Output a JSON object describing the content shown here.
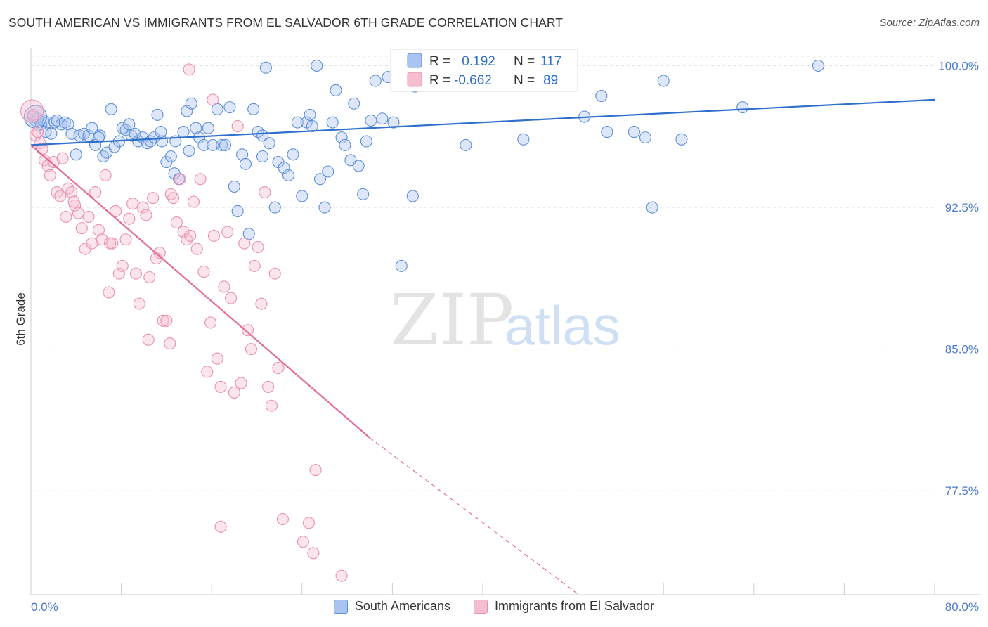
{
  "title": "SOUTH AMERICAN VS IMMIGRANTS FROM EL SALVADOR 6TH GRADE CORRELATION CHART",
  "source": "Source: ZipAtlas.com",
  "watermark": {
    "zip": "ZIP",
    "atlas": "atlas"
  },
  "colors": {
    "blue": "#5b8fd8",
    "blue_fill": "#a9c4f0",
    "blue_line": "#2f6fcc",
    "pink": "#e98fb1",
    "pink_fill": "#f5bdd2",
    "pink_line": "#e56a96",
    "tick_text": "#4a7bd0"
  },
  "legend_top": {
    "blue": {
      "r_label": "R =",
      "r_value": " 0.192",
      "n_label": "N =",
      "n_value": "117"
    },
    "pink": {
      "r_label": "R =",
      "r_value": "-0.662",
      "n_label": "N =",
      "n_value": "89"
    }
  },
  "chart_data": {
    "type": "scatter",
    "title": "SOUTH AMERICAN VS IMMIGRANTS FROM EL SALVADOR 6TH GRADE CORRELATION CHART",
    "xlabel": "",
    "ylabel": "6th Grade",
    "xlim": [
      0,
      80
    ],
    "ylim": [
      72,
      100.8
    ],
    "x_tick_labels": [
      "0.0%",
      "80.0%"
    ],
    "y_ticks": [
      100.0,
      92.5,
      85.0,
      77.5
    ],
    "y_tick_labels": [
      "100.0%",
      "92.5%",
      "85.0%",
      "77.5%"
    ],
    "grid": true,
    "legend_position": "bottom",
    "series": [
      {
        "name": "South Americans",
        "color": "#5b8fd8",
        "trend": {
          "x": [
            0,
            80
          ],
          "y": [
            95.8,
            98.2
          ]
        },
        "points": [
          [
            0.2,
            97.3
          ],
          [
            0.4,
            97.1
          ],
          [
            0.6,
            97.2
          ],
          [
            0.9,
            96.9
          ],
          [
            1.1,
            97.1
          ],
          [
            1.3,
            96.5
          ],
          [
            1.5,
            97.0
          ],
          [
            1.8,
            96.4
          ],
          [
            2.1,
            97.0
          ],
          [
            2.3,
            97.1
          ],
          [
            2.7,
            96.9
          ],
          [
            3.0,
            97.0
          ],
          [
            3.3,
            96.9
          ],
          [
            3.6,
            96.4
          ],
          [
            4.0,
            95.3
          ],
          [
            4.3,
            96.3
          ],
          [
            4.7,
            96.4
          ],
          [
            5.1,
            96.3
          ],
          [
            5.4,
            96.7
          ],
          [
            5.7,
            95.8
          ],
          [
            6.1,
            96.3
          ],
          [
            6.4,
            95.2
          ],
          [
            6.7,
            95.4
          ],
          [
            7.1,
            97.7
          ],
          [
            7.4,
            95.7
          ],
          [
            7.8,
            96.0
          ],
          [
            8.1,
            96.7
          ],
          [
            8.4,
            96.6
          ],
          [
            8.9,
            96.3
          ],
          [
            9.2,
            96.4
          ],
          [
            9.5,
            96.0
          ],
          [
            9.9,
            96.2
          ],
          [
            10.3,
            95.9
          ],
          [
            10.6,
            96.0
          ],
          [
            10.9,
            96.2
          ],
          [
            11.2,
            97.4
          ],
          [
            11.6,
            96.0
          ],
          [
            12.0,
            94.9
          ],
          [
            12.4,
            95.2
          ],
          [
            12.7,
            94.3
          ],
          [
            13.1,
            94.0
          ],
          [
            13.5,
            96.5
          ],
          [
            13.8,
            97.6
          ],
          [
            14.2,
            98.0
          ],
          [
            14.6,
            96.7
          ],
          [
            14.9,
            96.2
          ],
          [
            15.3,
            95.8
          ],
          [
            15.7,
            96.7
          ],
          [
            16.1,
            95.8
          ],
          [
            16.5,
            97.7
          ],
          [
            16.9,
            95.8
          ],
          [
            17.2,
            95.8
          ],
          [
            17.6,
            97.8
          ],
          [
            18.0,
            93.6
          ],
          [
            18.3,
            92.3
          ],
          [
            18.7,
            95.3
          ],
          [
            19.0,
            94.8
          ],
          [
            19.3,
            91.1
          ],
          [
            19.7,
            97.7
          ],
          [
            20.1,
            96.5
          ],
          [
            20.5,
            96.3
          ],
          [
            20.8,
            99.9
          ],
          [
            21.1,
            95.9
          ],
          [
            21.6,
            92.5
          ],
          [
            21.9,
            94.9
          ],
          [
            22.4,
            94.6
          ],
          [
            22.8,
            94.2
          ],
          [
            23.2,
            95.3
          ],
          [
            23.6,
            97.0
          ],
          [
            24.0,
            93.1
          ],
          [
            24.4,
            97.0
          ],
          [
            24.7,
            97.4
          ],
          [
            24.9,
            96.8
          ],
          [
            25.3,
            100.0
          ],
          [
            25.6,
            94.0
          ],
          [
            26.0,
            92.5
          ],
          [
            26.3,
            94.4
          ],
          [
            26.7,
            97.0
          ],
          [
            27.0,
            98.7
          ],
          [
            27.5,
            96.2
          ],
          [
            27.8,
            95.8
          ],
          [
            28.3,
            95.0
          ],
          [
            28.6,
            98.0
          ],
          [
            29.0,
            94.7
          ],
          [
            29.4,
            93.2
          ],
          [
            29.7,
            96.0
          ],
          [
            30.1,
            97.1
          ],
          [
            30.5,
            99.2
          ],
          [
            31.1,
            97.2
          ],
          [
            31.6,
            99.4
          ],
          [
            32.1,
            97.0
          ],
          [
            32.6,
            99.9
          ],
          [
            33.1,
            100.0
          ],
          [
            33.8,
            93.1
          ],
          [
            34.0,
            98.9
          ],
          [
            34.6,
            99.4
          ],
          [
            35.4,
            100.0
          ],
          [
            36.1,
            100.0
          ],
          [
            37.0,
            99.6
          ],
          [
            38.2,
            100.0
          ],
          [
            39.0,
            99.1
          ],
          [
            40.0,
            99.5
          ],
          [
            41.3,
            99.6
          ],
          [
            42.5,
            100.0
          ],
          [
            44.0,
            99.2
          ],
          [
            45.1,
            99.0
          ],
          [
            46.5,
            99.4
          ],
          [
            47.8,
            100.0
          ],
          [
            53.4,
            96.5
          ],
          [
            55.0,
            92.5
          ],
          [
            49.0,
            97.3
          ],
          [
            50.5,
            98.4
          ],
          [
            51.0,
            96.5
          ],
          [
            54.4,
            96.2
          ],
          [
            56.0,
            99.2
          ],
          [
            63.0,
            97.8
          ],
          [
            69.7,
            100.0
          ],
          [
            32.8,
            89.4
          ],
          [
            38.5,
            95.8
          ],
          [
            43.6,
            96.1
          ],
          [
            57.6,
            96.1
          ],
          [
            20.5,
            95.2
          ],
          [
            14.0,
            95.5
          ],
          [
            11.5,
            96.5
          ],
          [
            8.7,
            96.9
          ],
          [
            6.0,
            96.2
          ],
          [
            12.8,
            96.0
          ]
        ]
      },
      {
        "name": "Immigrants from El Salvador",
        "color": "#e98fb1",
        "trend": {
          "x": [
            0,
            30
          ],
          "y": [
            95.8,
            80.3
          ]
        },
        "trend_dashed": {
          "x": [
            30,
            48.5
          ],
          "y": [
            80.3,
            72.0
          ]
        },
        "points": [
          [
            0.2,
            97.4
          ],
          [
            0.4,
            96.3
          ],
          [
            0.6,
            96.5
          ],
          [
            0.8,
            95.9
          ],
          [
            1.0,
            95.6
          ],
          [
            1.2,
            95.0
          ],
          [
            1.5,
            94.7
          ],
          [
            1.7,
            94.2
          ],
          [
            2.0,
            94.9
          ],
          [
            2.3,
            93.3
          ],
          [
            2.6,
            93.1
          ],
          [
            2.8,
            95.1
          ],
          [
            3.1,
            92.0
          ],
          [
            3.3,
            93.5
          ],
          [
            3.6,
            93.3
          ],
          [
            3.9,
            92.6
          ],
          [
            4.2,
            92.2
          ],
          [
            4.5,
            91.4
          ],
          [
            4.8,
            90.3
          ],
          [
            5.1,
            92.0
          ],
          [
            5.4,
            90.6
          ],
          [
            5.7,
            93.3
          ],
          [
            6.0,
            91.3
          ],
          [
            6.3,
            90.8
          ],
          [
            6.6,
            94.2
          ],
          [
            6.9,
            88.0
          ],
          [
            7.2,
            90.6
          ],
          [
            7.5,
            92.3
          ],
          [
            7.8,
            89.0
          ],
          [
            8.1,
            89.4
          ],
          [
            8.4,
            90.8
          ],
          [
            8.7,
            91.9
          ],
          [
            9.0,
            92.7
          ],
          [
            9.3,
            89.0
          ],
          [
            9.6,
            87.4
          ],
          [
            9.9,
            92.5
          ],
          [
            10.2,
            92.1
          ],
          [
            10.5,
            88.8
          ],
          [
            10.8,
            93.0
          ],
          [
            11.1,
            89.8
          ],
          [
            11.4,
            90.1
          ],
          [
            11.7,
            86.5
          ],
          [
            12.0,
            86.5
          ],
          [
            12.3,
            85.3
          ],
          [
            12.6,
            93.0
          ],
          [
            12.9,
            91.7
          ],
          [
            13.2,
            94.0
          ],
          [
            13.5,
            91.2
          ],
          [
            13.8,
            90.8
          ],
          [
            14.1,
            91.0
          ],
          [
            14.4,
            92.8
          ],
          [
            14.7,
            90.3
          ],
          [
            15.0,
            94.0
          ],
          [
            15.3,
            89.1
          ],
          [
            15.6,
            83.8
          ],
          [
            15.9,
            86.4
          ],
          [
            16.2,
            91.0
          ],
          [
            16.5,
            84.5
          ],
          [
            16.8,
            83.0
          ],
          [
            17.1,
            88.3
          ],
          [
            17.4,
            91.2
          ],
          [
            17.7,
            87.7
          ],
          [
            18.0,
            82.7
          ],
          [
            18.3,
            96.8
          ],
          [
            18.6,
            83.2
          ],
          [
            18.9,
            90.6
          ],
          [
            19.2,
            86.0
          ],
          [
            19.5,
            85.0
          ],
          [
            19.8,
            89.4
          ],
          [
            20.1,
            90.4
          ],
          [
            20.4,
            87.4
          ],
          [
            20.7,
            93.3
          ],
          [
            21.0,
            83.0
          ],
          [
            21.3,
            82.0
          ],
          [
            21.6,
            89.0
          ],
          [
            21.9,
            84.0
          ],
          [
            16.1,
            98.2
          ],
          [
            14.0,
            99.8
          ],
          [
            22.3,
            76.0
          ],
          [
            24.1,
            74.8
          ],
          [
            25.0,
            74.2
          ],
          [
            24.6,
            75.8
          ],
          [
            16.8,
            75.6
          ],
          [
            27.5,
            73.0
          ],
          [
            25.2,
            78.6
          ],
          [
            10.4,
            85.5
          ],
          [
            3.8,
            92.8
          ],
          [
            7.0,
            90.6
          ],
          [
            12.4,
            93.2
          ]
        ]
      }
    ]
  },
  "legend_bottom": [
    {
      "label": "South Americans"
    },
    {
      "label": "Immigrants from El Salvador"
    }
  ]
}
